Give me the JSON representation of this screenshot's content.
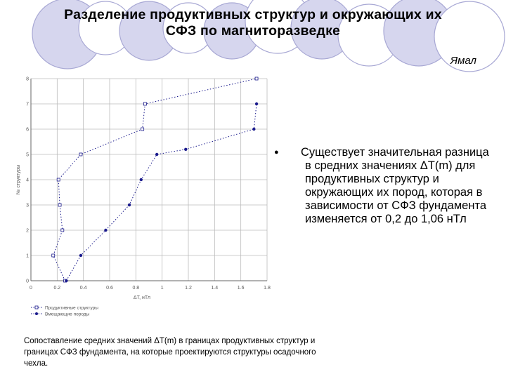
{
  "header": {
    "title_line1": "Разделение продуктивных структур и окружающих их",
    "title_line2": "СФЗ по магниторазведке",
    "region": "Ямал"
  },
  "theme": {
    "circle_fill": "#d6d6ee",
    "circle_stroke": "#a8a8d4",
    "grid_color": "#bbbbbb",
    "series_color": "#1a1a8c"
  },
  "chart_data": {
    "type": "scatter",
    "title": "",
    "xlabel": "ΔT, нТл",
    "ylabel": "№ структуры",
    "xlim": [
      0,
      1.8
    ],
    "ylim": [
      0,
      8
    ],
    "xticks": [
      "0",
      "0.2",
      "0.4",
      "0.6",
      "0.8",
      "1",
      "1.2",
      "1.4",
      "1.6",
      "1.8"
    ],
    "yticks": [
      "0",
      "1",
      "2",
      "3",
      "4",
      "5",
      "6",
      "7",
      "8"
    ],
    "grid": true,
    "legend_position": "bottom-left",
    "series": [
      {
        "name": "Продуктивные структуры",
        "marker": "square",
        "line": "dotted",
        "points": [
          {
            "x": 0.26,
            "y": 0.0
          },
          {
            "x": 0.17,
            "y": 1.0
          },
          {
            "x": 0.24,
            "y": 2.0
          },
          {
            "x": 0.22,
            "y": 3.0
          },
          {
            "x": 0.21,
            "y": 4.0
          },
          {
            "x": 0.38,
            "y": 5.0
          },
          {
            "x": 0.85,
            "y": 6.0
          },
          {
            "x": 0.87,
            "y": 7.0
          },
          {
            "x": 1.72,
            "y": 8.0
          }
        ]
      },
      {
        "name": "Вмещающие породы",
        "marker": "circle",
        "line": "dotted",
        "points": [
          {
            "x": 0.27,
            "y": 0.0
          },
          {
            "x": 0.38,
            "y": 1.0
          },
          {
            "x": 0.57,
            "y": 2.0
          },
          {
            "x": 0.75,
            "y": 3.0
          },
          {
            "x": 0.84,
            "y": 4.0
          },
          {
            "x": 0.96,
            "y": 5.0
          },
          {
            "x": 1.18,
            "y": 5.2
          },
          {
            "x": 1.7,
            "y": 6.0
          },
          {
            "x": 1.72,
            "y": 7.0
          }
        ]
      }
    ]
  },
  "bullet": {
    "symbol": "●",
    "text": "Существует значительная разница в средних значениях ΔT(m) для продуктивных структур и окружающих их пород, которая в зависимости от СФЗ фундамента изменяется от 0,2 до 1,06 нТл"
  },
  "caption": "Сопоставление средних значений ΔT(m) в границах продуктивных структур и границах СФЗ фундамента, на которые проектируются структуры осадочного чехла."
}
